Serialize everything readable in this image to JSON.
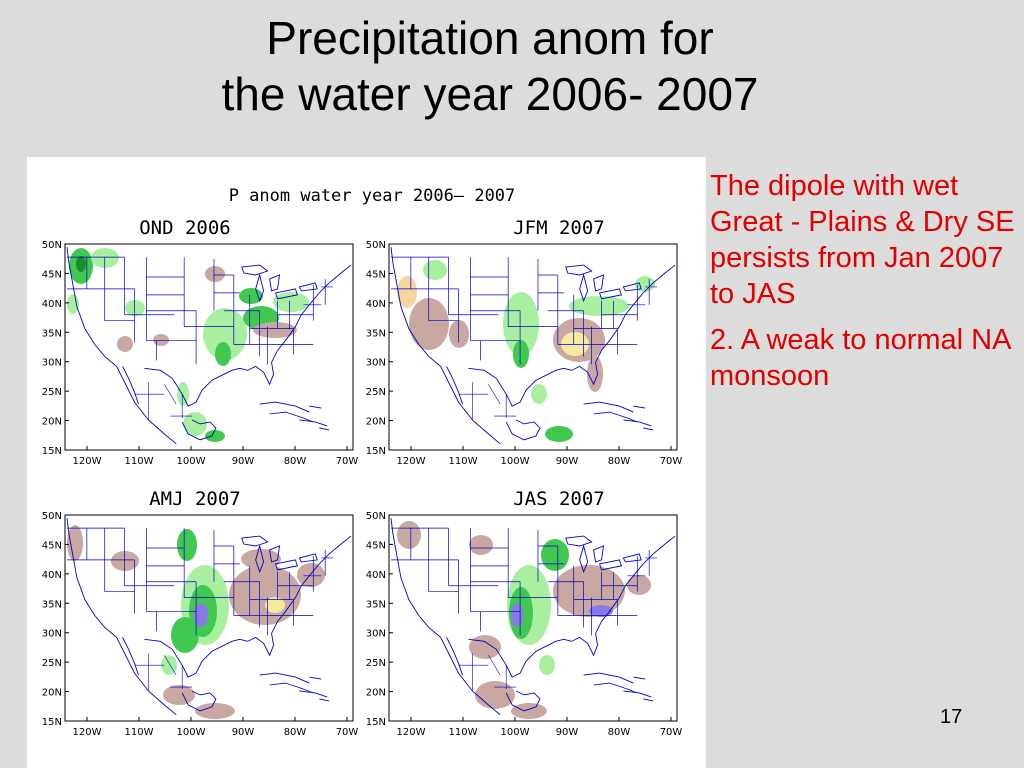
{
  "slide": {
    "title_line1": "Precipitation anom for",
    "title_line2": "the water year 2006- 2007",
    "notes": [
      "The dipole with wet Great - Plains  & Dry SE persists from Jan 2007 to JAS",
      "2. A weak to normal NA monsoon"
    ],
    "slide_number": "17",
    "text_color": "#e00000"
  },
  "figure": {
    "main_title": "P anom water year 2006– 2007",
    "panels": [
      {
        "title": "OND 2006"
      },
      {
        "title": "JFM 2007"
      },
      {
        "title": "AMJ 2007"
      },
      {
        "title": "JAS 2007"
      }
    ],
    "lat_labels": [
      "50N",
      "45N",
      "40N",
      "35N",
      "30N",
      "25N",
      "20N",
      "15N"
    ],
    "lon_labels": [
      "120W",
      "110W",
      "100W",
      "90W",
      "80W",
      "70W"
    ],
    "colors": {
      "wet_light": "#a8f0a0",
      "wet": "#40c850",
      "wet_strong": "#1a8c2a",
      "very_wet": "#8a78e8",
      "dry": "#c8a8a0",
      "very_dry": "#f5eaa0",
      "coast": "#0000c8"
    }
  }
}
